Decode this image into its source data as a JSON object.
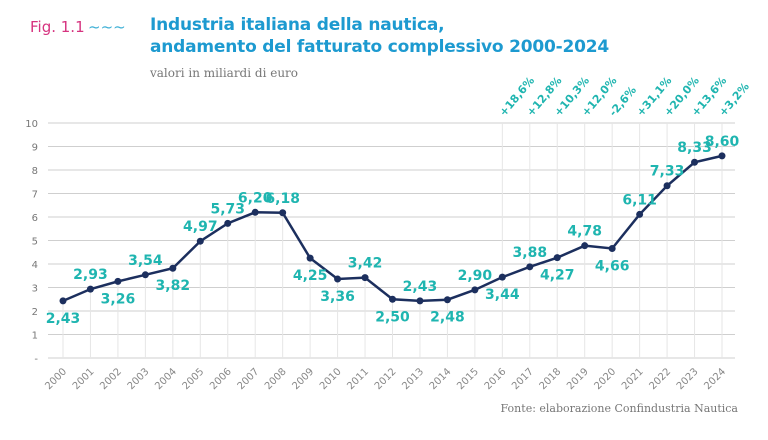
{
  "header": {
    "fig_label": "Fig. 1.1",
    "title_line1": "Industria italiana della nautica,",
    "title_line2": "andamento del fatturato complessivo 2000-2024",
    "subtitle": "valori in miliardi di euro"
  },
  "source": "Fonte: elaborazione Confindustria Nautica",
  "colors": {
    "line": "#1c2f5e",
    "labels": "#1fb5b0",
    "grid": "#cfcfcf",
    "title": "#1d9ad0",
    "fig": "#d6337f"
  },
  "chart_data": {
    "type": "line",
    "categories": [
      "2000",
      "2001",
      "2002",
      "2003",
      "2004",
      "2005",
      "2006",
      "2007",
      "2008",
      "2009",
      "2010",
      "2011",
      "2012",
      "2013",
      "2014",
      "2015",
      "2016",
      "2017",
      "2018",
      "2019",
      "2020",
      "2021",
      "2022",
      "2023",
      "2024"
    ],
    "values": [
      2.43,
      2.93,
      3.26,
      3.54,
      3.82,
      4.97,
      5.73,
      6.2,
      6.18,
      4.25,
      3.36,
      3.42,
      2.5,
      2.43,
      2.48,
      2.9,
      3.44,
      3.88,
      4.27,
      4.78,
      4.66,
      6.11,
      7.33,
      8.33,
      8.6
    ],
    "data_labels": [
      "2,43",
      "2,93",
      "3,26",
      "3,54",
      "3,82",
      "4,97",
      "5,73",
      "6,20",
      "6,18",
      "4,25",
      "3,36",
      "3,42",
      "2,50",
      "2,43",
      "2,48",
      "2,90",
      "3,44",
      "3,88",
      "4,27",
      "4,78",
      "4,66",
      "6,11",
      "7,33",
      "8,33",
      "8,60"
    ],
    "label_side": [
      "below",
      "above",
      "below",
      "above",
      "below",
      "above",
      "above",
      "above",
      "above",
      "below",
      "below",
      "above",
      "below",
      "above",
      "below",
      "above",
      "below",
      "above",
      "below",
      "above",
      "below",
      "above",
      "above",
      "above",
      "above"
    ],
    "growth_labels": {
      "years": [
        "2016",
        "2017",
        "2018",
        "2019",
        "2020",
        "2021",
        "2022",
        "2023",
        "2024"
      ],
      "values": [
        "+18,6%",
        "+12,8%",
        "+10,3%",
        "+12,0%",
        "-2,6%",
        "+31,1%",
        "+20,0%",
        "+13,6%",
        "+3,2%"
      ]
    },
    "y_ticks": [
      "-",
      "1",
      "2",
      "3",
      "4",
      "5",
      "6",
      "7",
      "8",
      "9",
      "10"
    ],
    "ylim": [
      0,
      10
    ],
    "grid": true,
    "title": "Industria italiana della nautica, andamento del fatturato complessivo 2000-2024",
    "ylabel": "valori in miliardi di euro"
  }
}
